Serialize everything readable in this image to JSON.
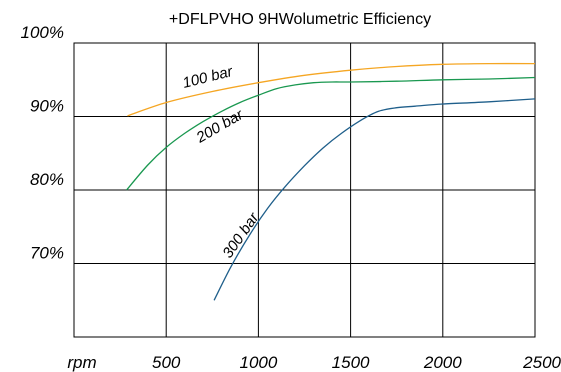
{
  "chart_data": {
    "type": "line",
    "title": "+DFLPVHO 9HWolumetric Efficiency",
    "xlabel": "",
    "ylabel": "",
    "x_unit_label": "rpm",
    "xlim": [
      0,
      2500
    ],
    "ylim": [
      60,
      100
    ],
    "x_ticks": [
      500,
      1000,
      1500,
      2000,
      2500
    ],
    "x_tick_labels": [
      "500",
      "1000",
      "1500",
      "2000",
      "2500"
    ],
    "y_ticks": [
      70,
      80,
      90,
      100
    ],
    "y_tick_labels": [
      "70%",
      "80%",
      "90%",
      "100%"
    ],
    "grid": true,
    "legend": "none",
    "series": [
      {
        "name": "100 bar",
        "color": "#f5a623",
        "x": [
          290,
          500,
          750,
          1000,
          1250,
          1500,
          1750,
          2000,
          2250,
          2500
        ],
        "y": [
          90.1,
          91.9,
          93.4,
          94.6,
          95.6,
          96.3,
          96.8,
          97.1,
          97.2,
          97.2
        ]
      },
      {
        "name": "200 bar",
        "color": "#1a9850",
        "x": [
          285,
          400,
          500,
          600,
          700,
          800,
          900,
          1000,
          1100,
          1200,
          1300,
          1400,
          1500,
          1750,
          2000,
          2250,
          2500
        ],
        "y": [
          80.0,
          83.4,
          85.8,
          87.7,
          89.3,
          90.7,
          91.9,
          92.9,
          93.8,
          94.3,
          94.6,
          94.7,
          94.7,
          94.8,
          95.0,
          95.1,
          95.3
        ]
      },
      {
        "name": "300 bar",
        "color": "#1f5f8b",
        "x": [
          760,
          850,
          950,
          1050,
          1150,
          1250,
          1350,
          1450,
          1550,
          1650,
          1750,
          1850,
          2000,
          2250,
          2500
        ],
        "y": [
          65.0,
          69.5,
          73.8,
          77.5,
          80.6,
          83.3,
          85.7,
          87.7,
          89.4,
          90.7,
          91.2,
          91.4,
          91.7,
          92.0,
          92.4
        ]
      }
    ],
    "annotations": [
      {
        "text": "100 bar",
        "series": "100 bar"
      },
      {
        "text": "200 bar",
        "series": "200 bar"
      },
      {
        "text": "300 bar",
        "series": "300 bar"
      }
    ]
  }
}
